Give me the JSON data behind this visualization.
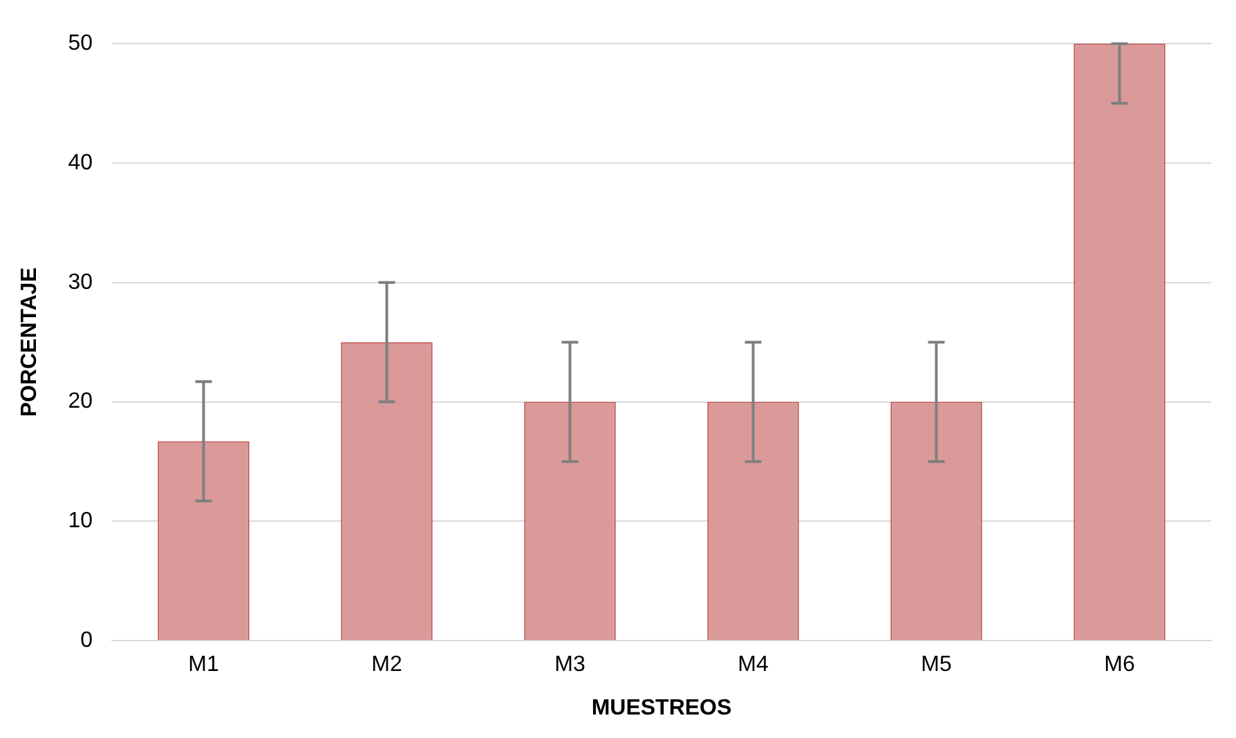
{
  "chart_data": {
    "type": "bar",
    "xlabel": "MUESTREOS",
    "ylabel": "PORCENTAJE",
    "categories": [
      "M1",
      "M2",
      "M3",
      "M4",
      "M5",
      "M6"
    ],
    "values": [
      16.7,
      25,
      20,
      20,
      20,
      50
    ],
    "errors": [
      5,
      5,
      5,
      5,
      5,
      [
        45,
        50
      ]
    ],
    "color": "#d99a99",
    "ylim": [
      0,
      50
    ],
    "yticks": [
      0,
      10,
      20,
      30,
      40,
      50
    ],
    "grid": "y",
    "legend": false
  }
}
